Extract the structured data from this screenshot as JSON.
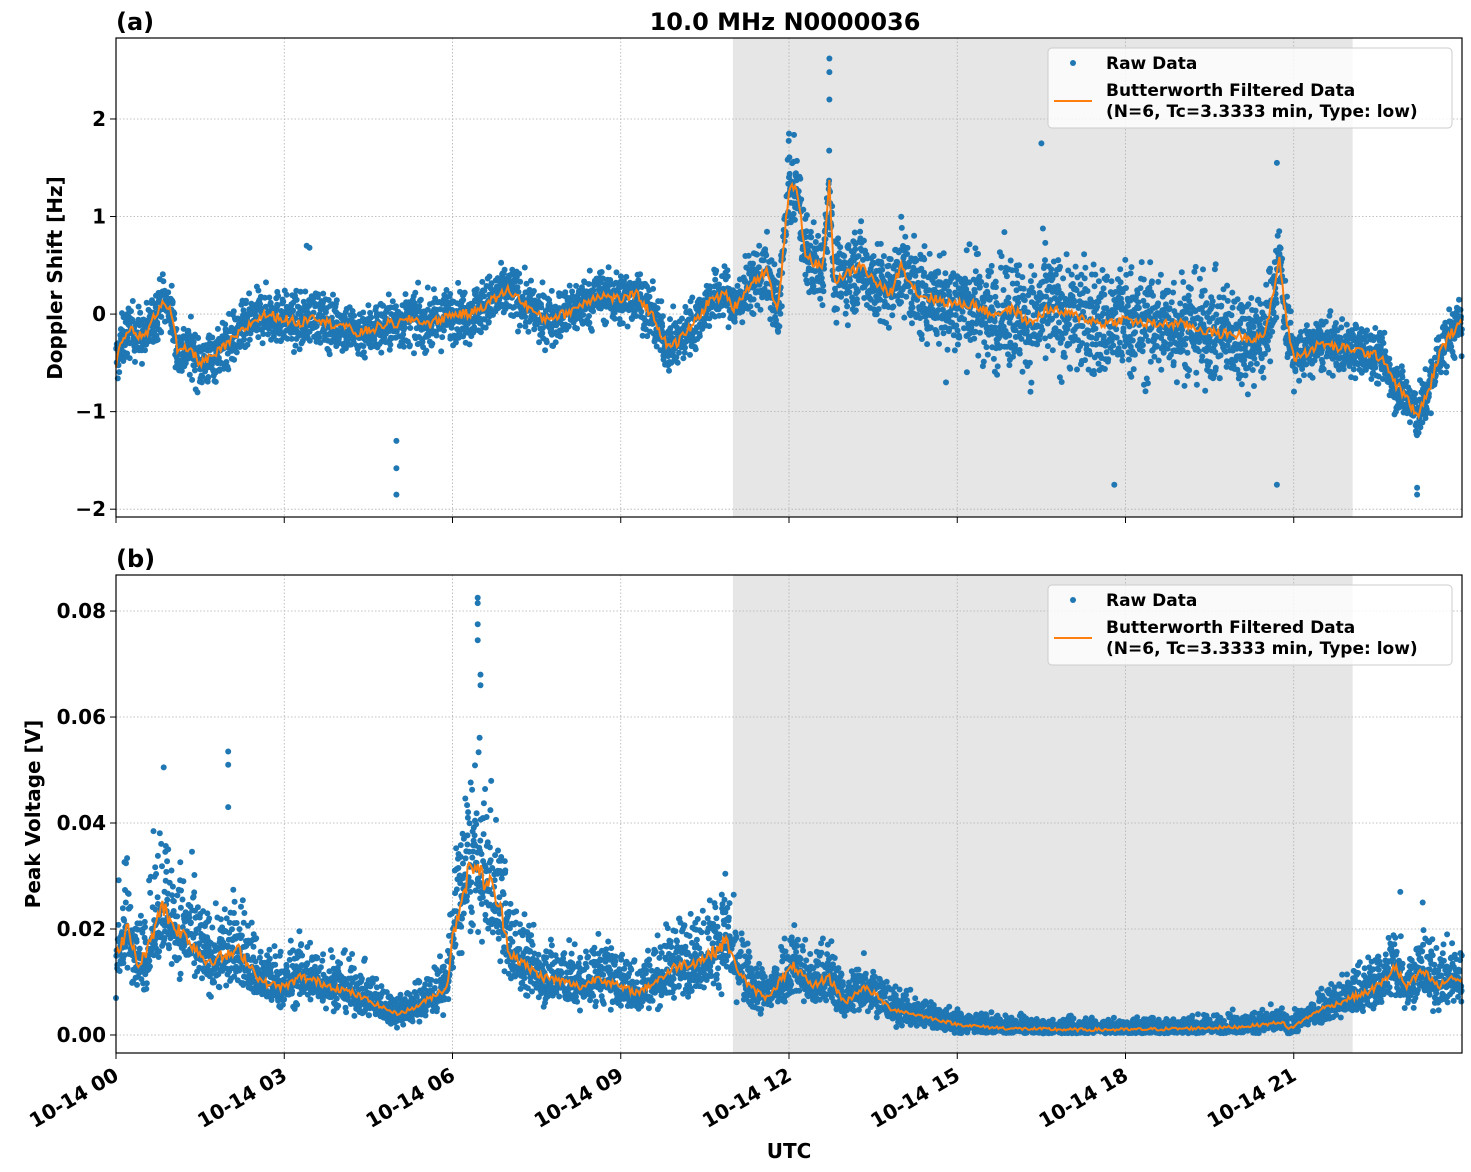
{
  "figure_title": "10.0 MHz N0000036",
  "xlabel": "UTC",
  "shaded_interval_hours": [
    11.0,
    22.05
  ],
  "colors": {
    "raw": "#1f77b4",
    "filtered": "#ff7f0e",
    "shade": "#e6e6e6",
    "grid": "#b0b0b0"
  },
  "chart_data": [
    {
      "type": "scatter",
      "panel_label": "(a)",
      "title": "10.0 MHz N0000036",
      "xlabel": "",
      "ylabel": "Doppler Shift [Hz]",
      "xlim_hours": [
        0,
        24
      ],
      "ylim": [
        -2.08,
        2.83
      ],
      "xticks": [
        0,
        3,
        6,
        9,
        12,
        15,
        18,
        21
      ],
      "xtick_labels": [
        "10-14 00",
        "10-14 03",
        "10-14 06",
        "10-14 09",
        "10-14 12",
        "10-14 15",
        "10-14 18",
        "10-14 21"
      ],
      "yticks": [
        -2,
        -1,
        0,
        1,
        2
      ],
      "ytick_labels": [
        "−2",
        "−1",
        "0",
        "1",
        "2"
      ],
      "grid": true,
      "legend": {
        "location": "upper-right",
        "entries": [
          "Raw Data",
          "Butterworth Filtered Data",
          "(N=6, Tc=3.3333 min, Type: low)"
        ]
      },
      "series": [
        {
          "name": "Butterworth Filtered Data",
          "kind": "line",
          "x_hours": [
            0,
            0.1,
            0.25,
            0.5,
            0.75,
            0.85,
            1.0,
            1.1,
            1.3,
            1.5,
            1.7,
            2.0,
            2.2,
            2.5,
            2.7,
            3.0,
            3.3,
            3.5,
            3.8,
            4.0,
            4.3,
            4.6,
            4.8,
            5.0,
            5.3,
            5.6,
            6.0,
            6.3,
            6.6,
            7.0,
            7.3,
            7.6,
            8.0,
            8.3,
            8.6,
            9.0,
            9.3,
            9.6,
            9.8,
            10.0,
            10.3,
            10.6,
            10.9,
            11.0,
            11.3,
            11.6,
            11.8,
            12.0,
            12.15,
            12.3,
            12.5,
            12.6,
            12.72,
            12.8,
            13.0,
            13.3,
            13.5,
            13.8,
            14.0,
            14.3,
            14.6,
            15.0,
            15.3,
            15.6,
            16.0,
            16.3,
            16.6,
            17.0,
            17.3,
            17.6,
            18.0,
            18.3,
            18.6,
            19.0,
            19.3,
            19.6,
            19.9,
            20.2,
            20.5,
            20.75,
            20.85,
            21.0,
            21.2,
            21.5,
            21.8,
            22.0,
            22.3,
            22.6,
            22.8,
            23.0,
            23.2,
            23.4,
            23.6,
            23.8,
            24.0
          ],
          "y": [
            -0.5,
            -0.3,
            -0.15,
            -0.25,
            0.05,
            0.15,
            0.0,
            -0.4,
            -0.35,
            -0.5,
            -0.45,
            -0.3,
            -0.2,
            -0.05,
            0.0,
            -0.05,
            -0.1,
            0.0,
            -0.1,
            -0.1,
            -0.2,
            -0.15,
            -0.1,
            -0.1,
            -0.05,
            -0.1,
            0.0,
            0.0,
            0.1,
            0.25,
            0.1,
            -0.05,
            0.0,
            0.1,
            0.2,
            0.15,
            0.2,
            -0.05,
            -0.3,
            -0.3,
            -0.1,
            0.15,
            0.2,
            0.05,
            0.3,
            0.45,
            0.0,
            1.3,
            1.25,
            0.6,
            0.5,
            0.45,
            1.38,
            0.35,
            0.4,
            0.5,
            0.35,
            0.2,
            0.5,
            0.2,
            0.15,
            0.1,
            0.1,
            0.0,
            0.05,
            -0.1,
            0.05,
            0.0,
            -0.05,
            -0.1,
            -0.05,
            -0.1,
            -0.1,
            -0.1,
            -0.15,
            -0.2,
            -0.2,
            -0.25,
            -0.2,
            0.58,
            0.0,
            -0.45,
            -0.4,
            -0.3,
            -0.35,
            -0.35,
            -0.4,
            -0.45,
            -0.7,
            -0.85,
            -1.05,
            -0.8,
            -0.4,
            -0.2,
            -0.1
          ]
        },
        {
          "name": "Raw Data",
          "kind": "scatter",
          "spread_x_hours": [
            0,
            11,
            12,
            14,
            16,
            18,
            20.7,
            21,
            24
          ],
          "spread_halfwidth": [
            0.35,
            0.35,
            0.5,
            0.55,
            0.75,
            0.75,
            0.6,
            0.35,
            0.35
          ],
          "outliers_x_hours": [
            5.0,
            5.0,
            5.0,
            12.72,
            12.72,
            12.72,
            12.0,
            14.8,
            16.5,
            17.8,
            20.7,
            20.7,
            23.2,
            23.2,
            3.4,
            3.45
          ],
          "outliers_y": [
            -1.3,
            -1.58,
            -1.85,
            2.62,
            2.48,
            2.2,
            1.85,
            -0.7,
            1.75,
            -1.75,
            1.55,
            -1.75,
            -1.85,
            -1.78,
            0.7,
            0.68
          ]
        }
      ]
    },
    {
      "type": "scatter",
      "panel_label": "(b)",
      "xlabel": "UTC",
      "ylabel": "Peak Voltage [V]",
      "xlim_hours": [
        0,
        24
      ],
      "ylim": [
        -0.0034,
        0.0868
      ],
      "xticks": [
        0,
        3,
        6,
        9,
        12,
        15,
        18,
        21
      ],
      "xtick_labels": [
        "10-14 00",
        "10-14 03",
        "10-14 06",
        "10-14 09",
        "10-14 12",
        "10-14 15",
        "10-14 18",
        "10-14 21"
      ],
      "yticks": [
        0.0,
        0.02,
        0.04,
        0.06,
        0.08
      ],
      "ytick_labels": [
        "0.00",
        "0.02",
        "0.04",
        "0.06",
        "0.08"
      ],
      "grid": true,
      "legend": {
        "location": "upper-right",
        "entries": [
          "Raw Data",
          "Butterworth Filtered Data",
          "(N=6, Tc=3.3333 min, Type: low)"
        ]
      },
      "series": [
        {
          "name": "Butterworth Filtered Data",
          "kind": "line",
          "x_hours": [
            0,
            0.2,
            0.4,
            0.6,
            0.8,
            1.0,
            1.3,
            1.6,
            2.0,
            2.2,
            2.4,
            2.6,
            3.0,
            3.3,
            3.6,
            3.9,
            4.2,
            4.6,
            5.0,
            5.3,
            5.6,
            5.9,
            6.0,
            6.2,
            6.4,
            6.5,
            6.7,
            6.9,
            7.0,
            7.3,
            7.6,
            8.0,
            8.3,
            8.6,
            9.0,
            9.3,
            9.6,
            10.0,
            10.4,
            10.7,
            10.9,
            11.0,
            11.3,
            11.6,
            11.9,
            12.1,
            12.4,
            12.7,
            13.0,
            13.3,
            13.5,
            13.8,
            14.2,
            14.6,
            15.0,
            15.5,
            16.0,
            17.0,
            18.0,
            19.0,
            20.0,
            20.5,
            20.8,
            20.9,
            21.2,
            21.5,
            21.8,
            22.0,
            22.3,
            22.6,
            22.8,
            23.0,
            23.3,
            23.6,
            23.8,
            24.0
          ],
          "y": [
            0.015,
            0.02,
            0.013,
            0.017,
            0.025,
            0.021,
            0.018,
            0.014,
            0.015,
            0.016,
            0.013,
            0.01,
            0.009,
            0.011,
            0.01,
            0.009,
            0.008,
            0.006,
            0.004,
            0.005,
            0.007,
            0.009,
            0.018,
            0.028,
            0.033,
            0.03,
            0.028,
            0.022,
            0.016,
            0.013,
            0.011,
            0.01,
            0.009,
            0.011,
            0.009,
            0.008,
            0.01,
            0.013,
            0.014,
            0.016,
            0.018,
            0.014,
            0.009,
            0.007,
            0.011,
            0.013,
            0.009,
            0.011,
            0.006,
            0.009,
            0.008,
            0.005,
            0.004,
            0.003,
            0.002,
            0.0015,
            0.0012,
            0.001,
            0.001,
            0.0012,
            0.0015,
            0.002,
            0.0025,
            0.001,
            0.003,
            0.005,
            0.006,
            0.007,
            0.008,
            0.01,
            0.013,
            0.009,
            0.012,
            0.009,
            0.011,
            0.01
          ]
        },
        {
          "name": "Raw Data",
          "kind": "scatter",
          "spread_ratio": 0.6,
          "outliers_x_hours": [
            2.0,
            2.0,
            2.0,
            0.85,
            6.45,
            6.45,
            6.45,
            6.45,
            6.5,
            6.5,
            12.1,
            12.1,
            22.9,
            23.3
          ],
          "outliers_y": [
            0.0535,
            0.051,
            0.043,
            0.0505,
            0.0825,
            0.0815,
            0.0775,
            0.0745,
            0.068,
            0.066,
            0.0175,
            0.0165,
            0.027,
            0.025
          ]
        }
      ]
    }
  ]
}
